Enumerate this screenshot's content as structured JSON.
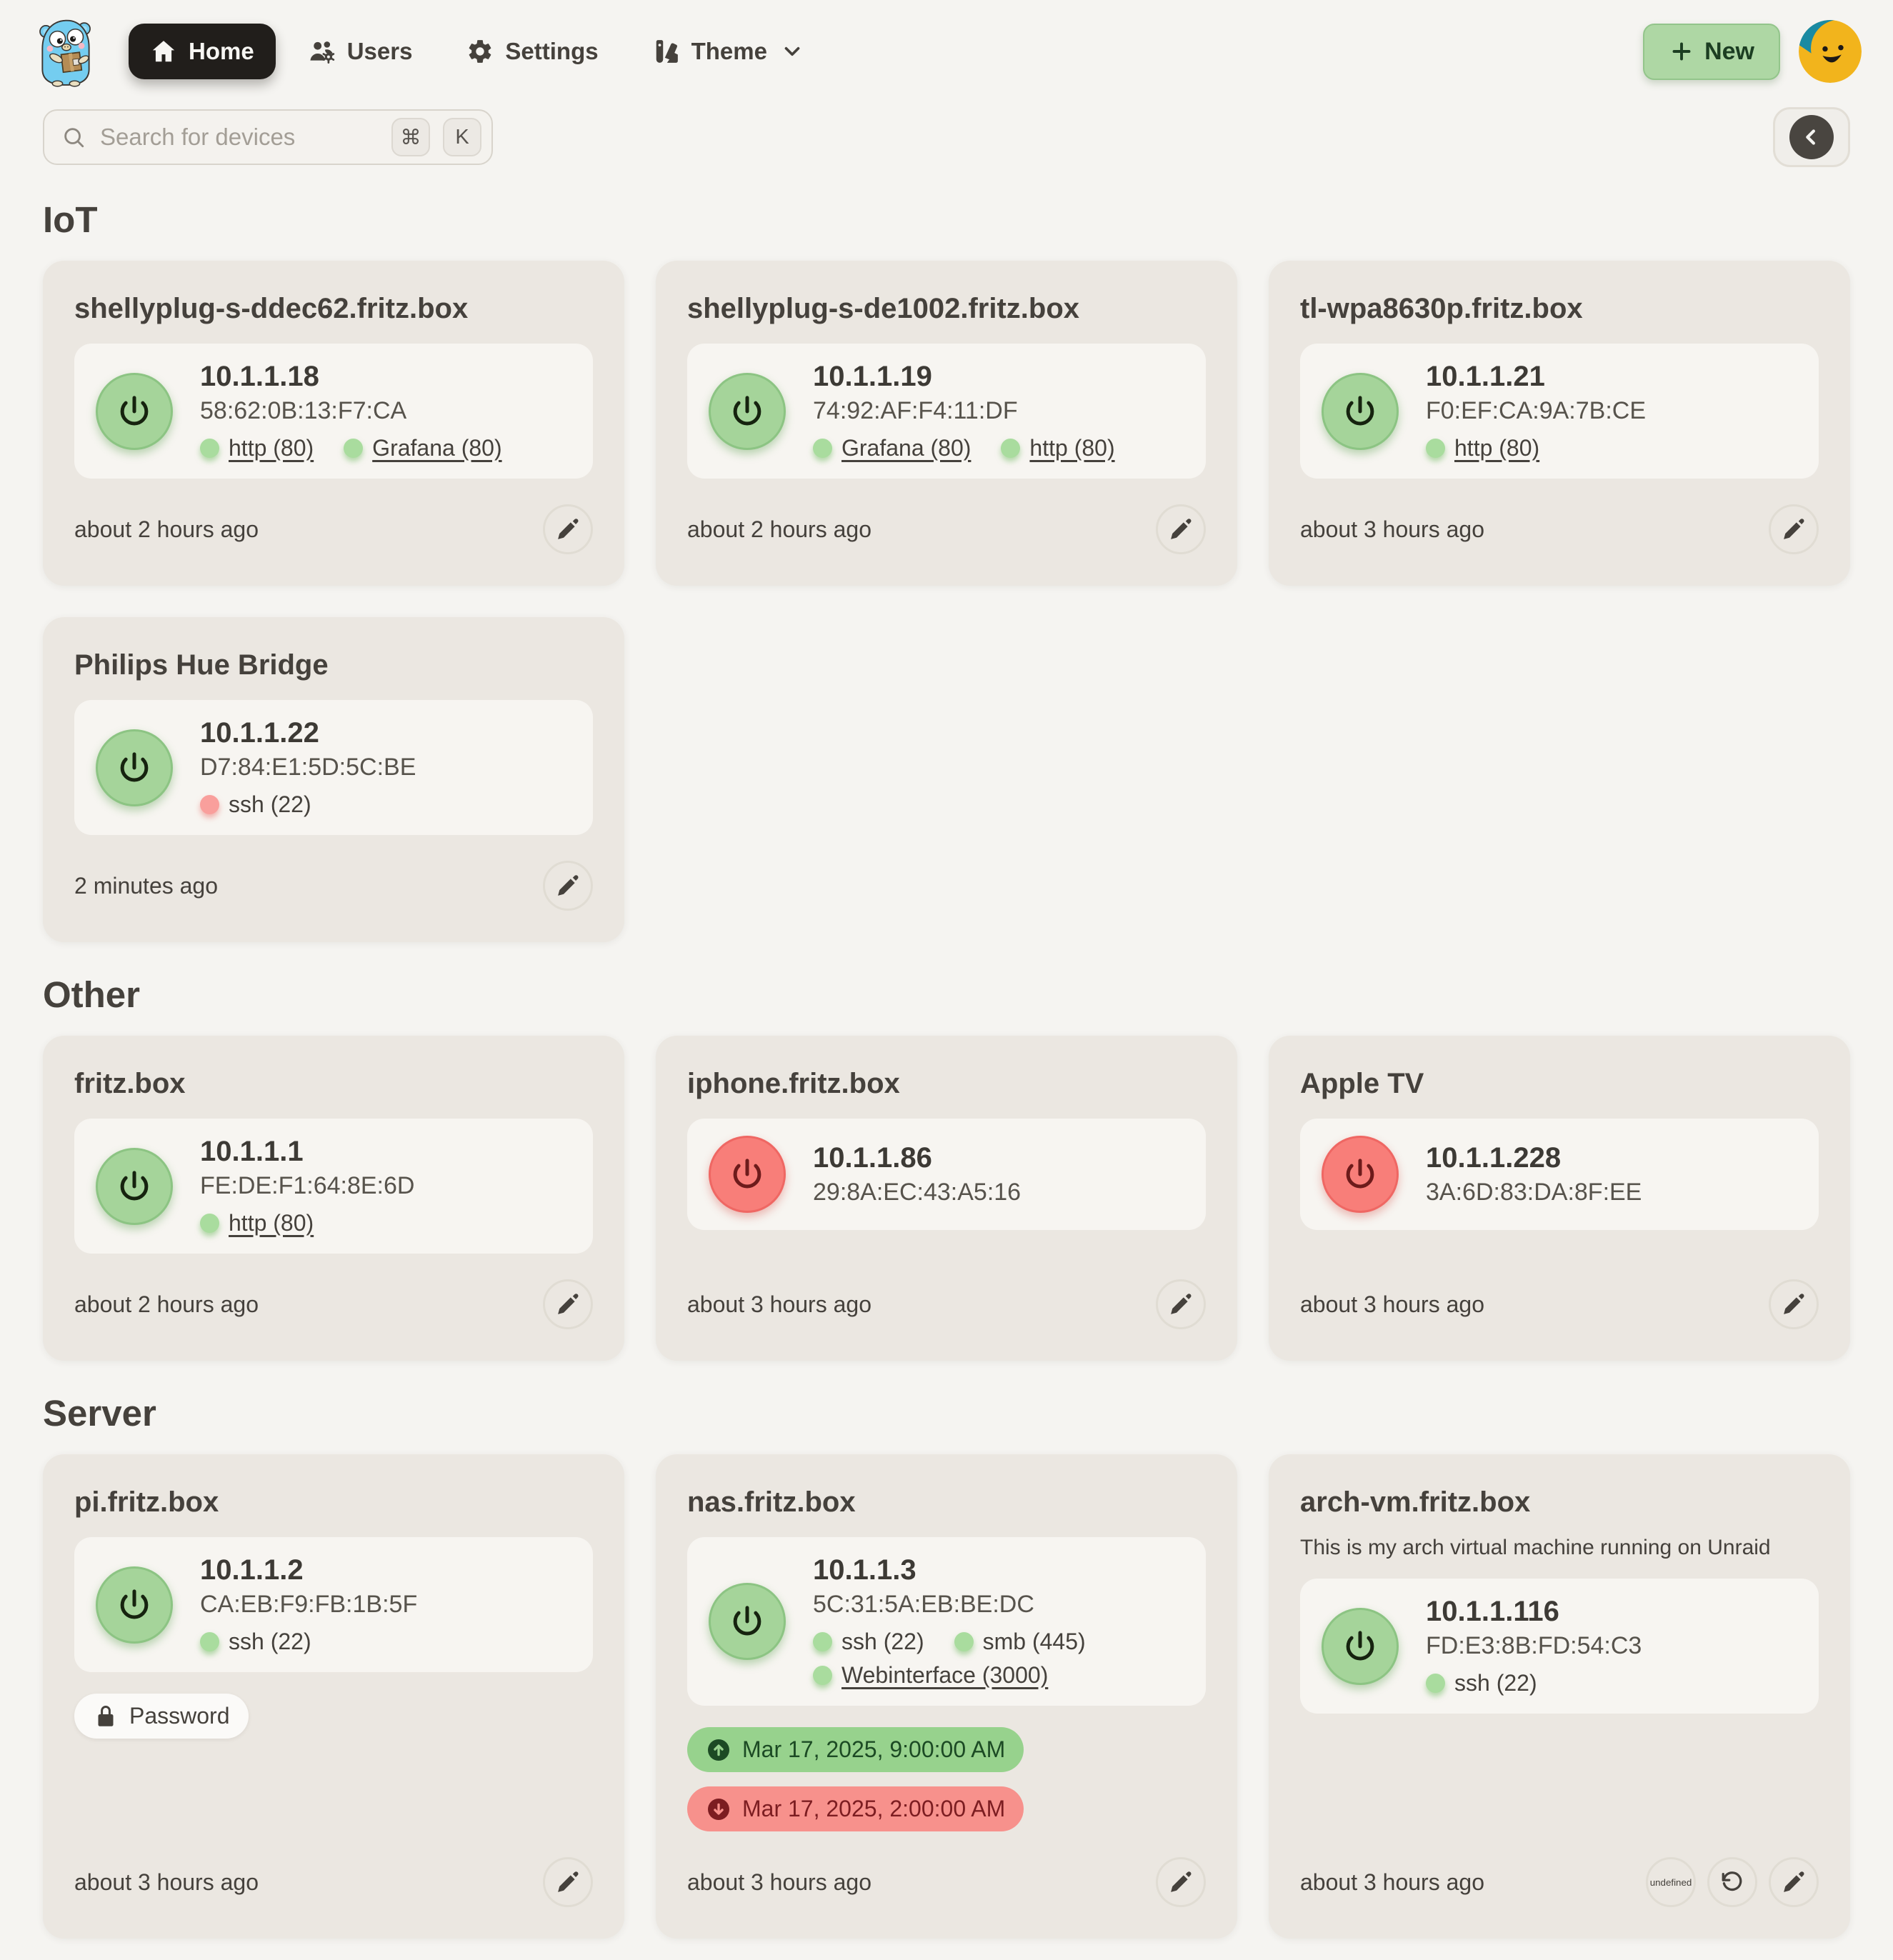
{
  "header": {
    "logo": "gopher-logo",
    "nav": [
      {
        "id": "home",
        "label": "Home",
        "icon": "home",
        "active": true,
        "has_dropdown": false
      },
      {
        "id": "users",
        "label": "Users",
        "icon": "users-gear",
        "active": false,
        "has_dropdown": false
      },
      {
        "id": "settings",
        "label": "Settings",
        "icon": "gear",
        "active": false,
        "has_dropdown": false
      },
      {
        "id": "theme",
        "label": "Theme",
        "icon": "swatch-book",
        "active": false,
        "has_dropdown": true
      }
    ],
    "new_button": {
      "label": "New",
      "icon": "plus"
    },
    "avatar": "smiley-avatar"
  },
  "search": {
    "placeholder": "Search for devices",
    "shortcut_keys": [
      "⌘",
      "K"
    ]
  },
  "toolbar": {
    "collapse_icon": "chevron-left"
  },
  "sections": [
    {
      "title": "IoT",
      "devices": [
        {
          "name": "shellyplug-s-ddec62.fritz.box",
          "power": "on",
          "ip": "10.1.1.18",
          "mac": "58:62:0B:13:F7:CA",
          "ports": [
            {
              "label": "http (80)",
              "status": "open",
              "link": true
            },
            {
              "label": "Grafana (80)",
              "status": "open",
              "link": true
            }
          ],
          "badges": [],
          "last_seen": "about 2 hours ago",
          "actions": [
            "edit"
          ]
        },
        {
          "name": "shellyplug-s-de1002.fritz.box",
          "power": "on",
          "ip": "10.1.1.19",
          "mac": "74:92:AF:F4:11:DF",
          "ports": [
            {
              "label": "Grafana (80)",
              "status": "open",
              "link": true
            },
            {
              "label": "http (80)",
              "status": "open",
              "link": true
            }
          ],
          "badges": [],
          "last_seen": "about 2 hours ago",
          "actions": [
            "edit"
          ]
        },
        {
          "name": "tl-wpa8630p.fritz.box",
          "power": "on",
          "ip": "10.1.1.21",
          "mac": "F0:EF:CA:9A:7B:CE",
          "ports": [
            {
              "label": "http (80)",
              "status": "open",
              "link": true
            }
          ],
          "badges": [],
          "last_seen": "about 3 hours ago",
          "actions": [
            "edit"
          ]
        },
        {
          "name": "Philips Hue Bridge",
          "power": "on",
          "ip": "10.1.1.22",
          "mac": "D7:84:E1:5D:5C:BE",
          "ports": [
            {
              "label": "ssh (22)",
              "status": "closed",
              "link": false
            }
          ],
          "badges": [],
          "last_seen": "2 minutes ago",
          "actions": [
            "edit"
          ]
        }
      ]
    },
    {
      "title": "Other",
      "devices": [
        {
          "name": "fritz.box",
          "power": "on",
          "ip": "10.1.1.1",
          "mac": "FE:DE:F1:64:8E:6D",
          "ports": [
            {
              "label": "http (80)",
              "status": "open",
              "link": true
            }
          ],
          "badges": [],
          "last_seen": "about 2 hours ago",
          "actions": [
            "edit"
          ]
        },
        {
          "name": "iphone.fritz.box",
          "power": "off",
          "ip": "10.1.1.86",
          "mac": "29:8A:EC:43:A5:16",
          "ports": [],
          "badges": [],
          "last_seen": "about 3 hours ago",
          "actions": [
            "edit"
          ]
        },
        {
          "name": "Apple TV",
          "power": "off",
          "ip": "10.1.1.228",
          "mac": "3A:6D:83:DA:8F:EE",
          "ports": [],
          "badges": [],
          "last_seen": "about 3 hours ago",
          "actions": [
            "edit"
          ]
        }
      ]
    },
    {
      "title": "Server",
      "devices": [
        {
          "name": "pi.fritz.box",
          "power": "on",
          "ip": "10.1.1.2",
          "mac": "CA:EB:F9:FB:1B:5F",
          "ports": [
            {
              "label": "ssh (22)",
              "status": "open",
              "link": false
            }
          ],
          "badges": [
            {
              "type": "password",
              "label": "Password"
            }
          ],
          "last_seen": "about 3 hours ago",
          "actions": [
            "edit"
          ]
        },
        {
          "name": "nas.fritz.box",
          "power": "on",
          "ip": "10.1.1.3",
          "mac": "5C:31:5A:EB:BE:DC",
          "ports": [
            {
              "label": "ssh (22)",
              "status": "open",
              "link": false
            },
            {
              "label": "smb (445)",
              "status": "open",
              "link": false
            },
            {
              "label": "Webinterface (3000)",
              "status": "open",
              "link": true
            }
          ],
          "badges": [
            {
              "type": "wake",
              "label": "Mar 17, 2025, 9:00:00 AM"
            },
            {
              "type": "shutdown",
              "label": "Mar 17, 2025, 2:00:00 AM"
            }
          ],
          "last_seen": "about 3 hours ago",
          "actions": [
            "edit"
          ]
        },
        {
          "name": "arch-vm.fritz.box",
          "description": "This is my arch virtual machine running on Unraid",
          "power": "on",
          "ip": "10.1.1.116",
          "mac": "FD:E3:8B:FD:54:C3",
          "ports": [
            {
              "label": "ssh (22)",
              "status": "open",
              "link": false
            }
          ],
          "badges": [],
          "last_seen": "about 3 hours ago",
          "actions": [
            "sleep",
            "restart",
            "edit"
          ]
        }
      ]
    }
  ],
  "colors": {
    "page_bg": "#f5f4f1",
    "card_bg": "#ebe7e1",
    "inner_bg": "#f7f5f1",
    "active_pill": "#211e1b",
    "power_on": "#a5d49a",
    "power_off": "#f87e79",
    "port_open_dot": "#a9dc9e",
    "port_closed_dot": "#f99f9c",
    "wake_badge": "#97d28d",
    "shutdown_badge": "#f7918c",
    "new_button": "#aed7a4"
  }
}
